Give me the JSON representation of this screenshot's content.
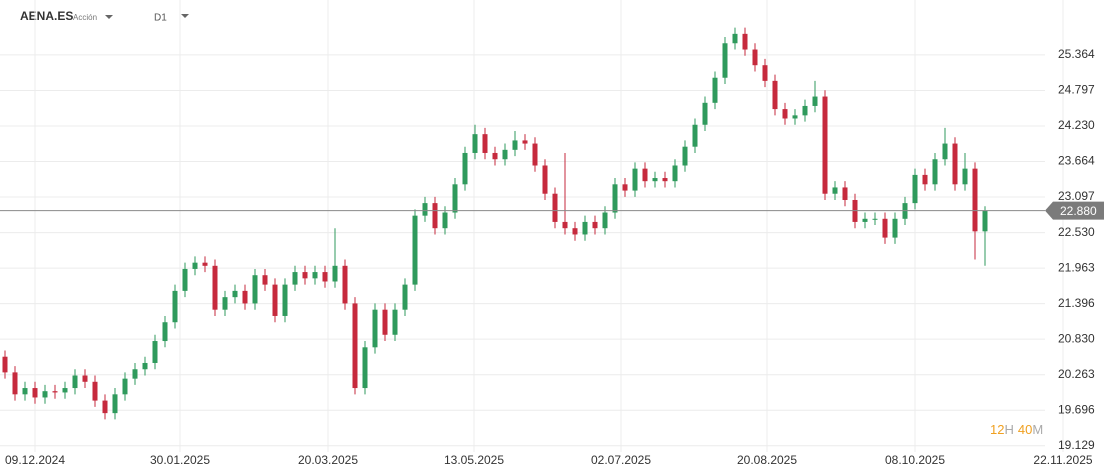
{
  "chart_data": {
    "type": "candlestick",
    "symbol": "AENA.ES",
    "instrument_type": "Acción",
    "timeframe": "D1",
    "up_color": "#2f9a5c",
    "down_color": "#c62a3d",
    "grid": true,
    "xlim": [
      -0.5,
      109.5
    ],
    "ylim": [
      19.03,
      26.24
    ],
    "xticks": [
      {
        "value": 3.0,
        "label": "09.12.2024"
      },
      {
        "value": 17.5,
        "label": "30.01.2025"
      },
      {
        "value": 32.3,
        "label": "20.03.2025"
      },
      {
        "value": 46.9,
        "label": "13.05.2025"
      },
      {
        "value": 61.6,
        "label": "02.07.2025"
      },
      {
        "value": 76.2,
        "label": "20.08.2025"
      },
      {
        "value": 91.0,
        "label": "08.10.2025"
      },
      {
        "value": 105.8,
        "label": "22.11.2025"
      }
    ],
    "yticks": [
      25.364,
      24.797,
      {
        "value": 24.23,
        "label": "24.230"
      },
      23.664,
      23.097,
      {
        "value": 22.53,
        "label": "22.530"
      },
      21.963,
      21.396,
      {
        "value": 20.83,
        "label": "20.830"
      },
      20.263,
      19.696,
      19.129
    ],
    "last_price": {
      "value": 22.88,
      "label": "22.880"
    },
    "countdown": {
      "hours": "12",
      "hours_unit": "H",
      "minutes": "40",
      "minutes_unit": "M"
    },
    "open": [
      20.55,
      20.3,
      19.95,
      20.05,
      19.9,
      20.0,
      19.98,
      20.05,
      20.25,
      20.15,
      19.85,
      19.65,
      19.95,
      20.2,
      20.35,
      20.45,
      20.8,
      21.1,
      21.6,
      21.95,
      22.05,
      22.0,
      21.3,
      21.5,
      21.6,
      21.4,
      21.85,
      21.7,
      21.2,
      21.7,
      21.9,
      21.8,
      21.9,
      21.75,
      22.0,
      21.4,
      20.05,
      20.7,
      21.3,
      20.9,
      21.3,
      21.7,
      22.8,
      23.0,
      22.6,
      22.85,
      23.3,
      23.8,
      24.1,
      23.8,
      23.7,
      23.85,
      24.0,
      23.95,
      23.6,
      23.15,
      22.7,
      22.6,
      22.5,
      22.7,
      22.6,
      22.85,
      23.3,
      23.2,
      23.55,
      23.35,
      23.4,
      23.35,
      23.6,
      23.9,
      24.25,
      24.6,
      25.0,
      25.55,
      25.7,
      25.45,
      25.2,
      24.95,
      24.5,
      24.35,
      24.4,
      24.55,
      24.7,
      23.15,
      23.25,
      23.05,
      22.7,
      22.75,
      22.75,
      22.45,
      22.75,
      23.0,
      23.45,
      23.3,
      23.7,
      23.95,
      23.3,
      23.55,
      22.55
    ],
    "high": [
      20.65,
      20.4,
      20.15,
      20.15,
      20.1,
      20.1,
      20.15,
      20.35,
      20.35,
      20.25,
      19.95,
      20.05,
      20.3,
      20.45,
      20.55,
      20.9,
      21.2,
      21.7,
      22.05,
      22.15,
      22.15,
      22.1,
      21.6,
      21.7,
      21.7,
      21.95,
      21.95,
      21.8,
      21.8,
      22.0,
      22.0,
      22.0,
      22.0,
      22.6,
      22.1,
      21.5,
      20.8,
      21.4,
      21.4,
      21.4,
      21.8,
      22.9,
      23.1,
      23.1,
      22.95,
      23.4,
      23.9,
      24.25,
      24.2,
      23.9,
      23.95,
      24.15,
      24.1,
      24.05,
      23.7,
      23.25,
      23.8,
      22.7,
      22.8,
      22.8,
      22.95,
      23.4,
      23.4,
      23.65,
      23.65,
      23.5,
      23.5,
      23.7,
      24.0,
      24.35,
      24.7,
      25.1,
      25.65,
      25.8,
      25.8,
      25.55,
      25.3,
      25.05,
      24.6,
      24.5,
      24.65,
      24.95,
      24.8,
      23.35,
      23.35,
      23.15,
      22.85,
      22.85,
      22.85,
      22.85,
      23.1,
      23.55,
      23.55,
      23.8,
      24.2,
      24.05,
      23.8,
      23.65,
      22.95
    ],
    "low": [
      20.2,
      19.85,
      19.85,
      19.8,
      19.8,
      19.88,
      19.88,
      19.95,
      20.05,
      19.75,
      19.55,
      19.55,
      19.85,
      20.1,
      20.25,
      20.35,
      20.7,
      21.0,
      21.5,
      21.85,
      21.9,
      21.2,
      21.2,
      21.4,
      21.3,
      21.3,
      21.6,
      21.1,
      21.1,
      21.6,
      21.7,
      21.7,
      21.65,
      21.65,
      21.3,
      19.95,
      19.95,
      20.6,
      20.8,
      20.8,
      21.2,
      21.6,
      22.7,
      22.5,
      22.5,
      22.75,
      23.2,
      23.7,
      23.7,
      23.6,
      23.6,
      23.75,
      23.85,
      23.5,
      23.05,
      22.6,
      22.5,
      22.4,
      22.4,
      22.5,
      22.5,
      22.75,
      23.1,
      23.1,
      23.25,
      23.25,
      23.25,
      23.25,
      23.5,
      23.8,
      24.15,
      24.5,
      24.9,
      25.45,
      25.35,
      25.1,
      24.85,
      24.4,
      24.25,
      24.25,
      24.3,
      24.45,
      23.05,
      23.05,
      22.95,
      22.6,
      22.6,
      22.65,
      22.35,
      22.35,
      22.65,
      22.9,
      23.2,
      23.2,
      23.6,
      23.2,
      23.2,
      22.1,
      22.0
    ],
    "close": [
      20.3,
      19.95,
      20.05,
      19.9,
      20.0,
      19.98,
      20.05,
      20.25,
      20.15,
      19.85,
      19.65,
      19.95,
      20.2,
      20.35,
      20.45,
      20.8,
      21.1,
      21.6,
      21.95,
      22.05,
      22.0,
      21.3,
      21.5,
      21.6,
      21.4,
      21.85,
      21.7,
      21.2,
      21.7,
      21.9,
      21.8,
      21.9,
      21.75,
      22.0,
      21.4,
      20.05,
      20.7,
      21.3,
      20.9,
      21.3,
      21.7,
      22.8,
      23.0,
      22.6,
      22.85,
      23.3,
      23.8,
      24.1,
      23.8,
      23.7,
      23.85,
      24.0,
      23.95,
      23.6,
      23.15,
      22.7,
      22.6,
      22.5,
      22.7,
      22.6,
      22.85,
      23.3,
      23.2,
      23.55,
      23.35,
      23.4,
      23.35,
      23.6,
      23.9,
      24.25,
      24.6,
      25.0,
      25.55,
      25.7,
      25.45,
      25.2,
      24.95,
      24.5,
      24.35,
      24.4,
      24.55,
      24.7,
      23.15,
      23.25,
      23.05,
      22.7,
      22.75,
      22.75,
      22.45,
      22.75,
      23.0,
      23.45,
      23.3,
      23.7,
      23.95,
      23.3,
      23.55,
      22.55,
      22.88
    ]
  }
}
